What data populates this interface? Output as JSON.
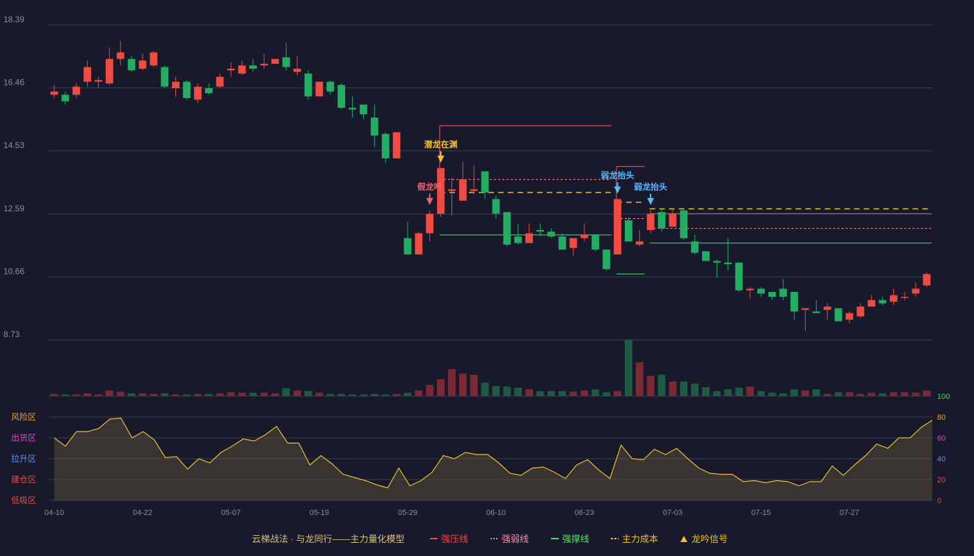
{
  "chart_data": {
    "type": "candlestick",
    "price_axis": {
      "ylim": [
        8.73,
        18.39
      ],
      "ticks": [
        "18.39",
        "16.46",
        "14.53",
        "12.59",
        "10.66",
        "8.73"
      ]
    },
    "x_tick_labels": [
      {
        "index": 0,
        "label": "04-10"
      },
      {
        "index": 8,
        "label": "04-22"
      },
      {
        "index": 16,
        "label": "05-07"
      },
      {
        "index": 24,
        "label": "05-19"
      },
      {
        "index": 32,
        "label": "05-29"
      },
      {
        "index": 40,
        "label": "06-10"
      },
      {
        "index": 48,
        "label": "06-23"
      },
      {
        "index": 56,
        "label": "07-03"
      },
      {
        "index": 64,
        "label": "07-15"
      },
      {
        "index": 72,
        "label": "07-27"
      }
    ],
    "candles": [
      [
        16.25,
        16.35,
        16.15,
        16.55
      ],
      [
        16.25,
        16.05,
        15.95,
        16.35
      ],
      [
        16.25,
        16.5,
        16.15,
        16.6
      ],
      [
        16.65,
        17.1,
        16.5,
        17.3
      ],
      [
        16.65,
        16.7,
        16.45,
        16.8
      ],
      [
        16.6,
        17.35,
        16.55,
        17.7
      ],
      [
        17.35,
        17.55,
        17.15,
        17.9
      ],
      [
        17.35,
        17.0,
        16.95,
        17.45
      ],
      [
        17.05,
        17.3,
        17.0,
        17.5
      ],
      [
        17.15,
        17.55,
        17.1,
        17.6
      ],
      [
        17.1,
        16.5,
        16.45,
        17.15
      ],
      [
        16.45,
        16.65,
        16.2,
        16.8
      ],
      [
        16.65,
        16.15,
        16.1,
        16.7
      ],
      [
        16.1,
        16.5,
        16.0,
        16.6
      ],
      [
        16.45,
        16.3,
        16.25,
        16.6
      ],
      [
        16.5,
        16.8,
        16.45,
        16.9
      ],
      [
        17.0,
        17.05,
        16.8,
        17.25
      ],
      [
        16.9,
        17.15,
        16.85,
        17.3
      ],
      [
        17.15,
        17.05,
        16.95,
        17.35
      ],
      [
        17.15,
        17.2,
        17.05,
        17.5
      ],
      [
        17.2,
        17.35,
        17.2,
        17.35
      ],
      [
        17.4,
        17.1,
        17.0,
        17.85
      ],
      [
        16.95,
        17.05,
        16.85,
        17.45
      ],
      [
        16.9,
        16.2,
        16.1,
        17.0
      ],
      [
        16.2,
        16.65,
        16.2,
        16.65
      ],
      [
        16.65,
        16.35,
        16.25,
        16.7
      ],
      [
        16.55,
        15.85,
        15.8,
        16.6
      ],
      [
        15.85,
        15.8,
        15.55,
        16.2
      ],
      [
        15.95,
        15.65,
        15.5,
        15.95
      ],
      [
        15.55,
        15.0,
        14.65,
        15.95
      ],
      [
        15.05,
        14.3,
        14.15,
        15.1
      ],
      [
        14.3,
        15.1,
        14.3,
        15.1
      ],
      [
        11.85,
        11.35,
        11.35,
        12.35
      ],
      [
        11.35,
        12.0,
        11.35,
        12.05
      ],
      [
        12.0,
        12.6,
        11.75,
        12.7
      ],
      [
        12.6,
        14.0,
        12.5,
        14.0
      ],
      [
        13.3,
        13.35,
        12.55,
        13.7
      ],
      [
        13.0,
        13.65,
        13.0,
        14.2
      ],
      [
        13.3,
        13.35,
        13.2,
        14.1
      ],
      [
        13.9,
        13.25,
        13.05,
        13.9
      ],
      [
        13.05,
        12.6,
        12.45,
        13.15
      ],
      [
        12.65,
        11.65,
        11.6,
        12.65
      ],
      [
        11.9,
        11.7,
        11.65,
        12.3
      ],
      [
        11.7,
        12.0,
        11.7,
        12.3
      ],
      [
        12.1,
        12.05,
        11.9,
        12.3
      ],
      [
        12.05,
        11.9,
        11.85,
        12.15
      ],
      [
        11.9,
        11.5,
        11.5,
        12.0
      ],
      [
        11.55,
        11.85,
        11.3,
        11.85
      ],
      [
        11.85,
        11.95,
        11.75,
        12.3
      ],
      [
        11.95,
        11.5,
        11.45,
        11.95
      ],
      [
        11.5,
        10.9,
        10.85,
        11.5
      ],
      [
        11.35,
        13.05,
        11.35,
        13.05
      ],
      [
        12.4,
        11.75,
        11.75,
        12.5
      ],
      [
        11.65,
        11.75,
        11.6,
        12.1
      ],
      [
        12.1,
        12.6,
        12.0,
        12.7
      ],
      [
        12.65,
        12.15,
        12.05,
        12.75
      ],
      [
        12.2,
        12.6,
        12.2,
        12.75
      ],
      [
        12.7,
        11.85,
        11.8,
        12.75
      ],
      [
        11.75,
        11.4,
        11.35,
        11.95
      ],
      [
        11.45,
        11.15,
        11.15,
        11.45
      ],
      [
        11.15,
        11.1,
        10.65,
        11.2
      ],
      [
        11.1,
        11.05,
        10.85,
        11.85
      ],
      [
        11.1,
        10.25,
        10.2,
        11.1
      ],
      [
        10.25,
        10.3,
        10.0,
        10.35
      ],
      [
        10.3,
        10.15,
        10.05,
        10.35
      ],
      [
        10.2,
        10.05,
        9.95,
        10.2
      ],
      [
        10.3,
        10.05,
        9.95,
        10.6
      ],
      [
        10.2,
        9.6,
        9.35,
        10.2
      ],
      [
        9.65,
        9.7,
        9.0,
        9.7
      ],
      [
        9.6,
        9.55,
        9.55,
        9.95
      ],
      [
        9.65,
        9.75,
        9.35,
        9.85
      ],
      [
        9.7,
        9.3,
        9.3,
        9.7
      ],
      [
        9.35,
        9.55,
        9.25,
        9.6
      ],
      [
        9.45,
        9.75,
        9.4,
        9.85
      ],
      [
        9.75,
        9.95,
        9.75,
        10.1
      ],
      [
        9.95,
        9.85,
        9.8,
        10.05
      ],
      [
        9.9,
        10.1,
        9.8,
        10.3
      ],
      [
        10.05,
        10.05,
        9.95,
        10.2
      ],
      [
        10.15,
        10.3,
        10.05,
        10.5
      ],
      [
        10.4,
        10.75,
        10.35,
        10.8
      ]
    ],
    "volume": [
      4,
      3,
      3,
      5,
      3,
      10,
      8,
      5,
      5,
      4,
      5,
      3,
      3,
      4,
      4,
      5,
      7,
      6,
      6,
      6,
      5,
      14,
      10,
      9,
      6,
      4,
      4,
      3,
      3,
      4,
      3,
      4,
      6,
      10,
      20,
      30,
      48,
      40,
      38,
      24,
      18,
      17,
      15,
      12,
      9,
      9,
      9,
      8,
      10,
      12,
      7,
      9,
      100,
      60,
      36,
      38,
      26,
      26,
      22,
      16,
      9,
      12,
      15,
      17,
      9,
      6,
      5,
      12,
      10,
      12,
      4,
      7,
      7,
      4,
      6,
      5,
      7,
      7,
      6,
      10
    ],
    "sentiment": {
      "ylim": [
        0,
        100
      ],
      "ticks": [
        "0",
        "20",
        "40",
        "60",
        "80",
        "100"
      ],
      "zones": [
        "风险区",
        "出货区",
        "拉升区",
        "建仓区",
        "低吸区"
      ],
      "values": [
        60,
        52,
        66,
        66,
        69,
        78,
        79,
        60,
        66,
        58,
        41,
        42,
        30,
        40,
        36,
        46,
        52,
        59,
        57,
        63,
        71,
        55,
        55,
        34,
        43,
        35,
        25,
        22,
        19,
        15,
        12,
        31,
        14,
        19,
        27,
        43,
        40,
        46,
        44,
        44,
        36,
        26,
        24,
        31,
        32,
        27,
        21,
        34,
        39,
        29,
        21,
        53,
        40,
        39,
        49,
        44,
        50,
        40,
        31,
        26,
        25,
        25,
        18,
        19,
        17,
        19,
        18,
        14,
        18,
        18,
        33,
        24,
        34,
        43,
        54,
        50,
        60,
        60,
        70,
        77
      ]
    },
    "annotations": [
      {
        "index": 35,
        "label": "潜龙在渊",
        "color": "#f0c03a"
      },
      {
        "index": 34,
        "label": "假龙吟",
        "color": "#f06070"
      },
      {
        "index": 51,
        "label": "弱龙抬头",
        "color": "#5cb8ff"
      },
      {
        "index": 54,
        "label": "弱龙抬头",
        "color": "#5cb8ff"
      }
    ],
    "level_lines": [
      {
        "type": "strong_pressure",
        "from": 35,
        "to": 50,
        "y": 15.3
      },
      {
        "type": "weak_dotted",
        "from": 35,
        "to": 50,
        "y": 13.65
      },
      {
        "type": "cost",
        "from": 35,
        "to": 50,
        "y": 13.25
      },
      {
        "type": "support",
        "from": 35,
        "to": 50,
        "y": 11.95
      },
      {
        "type": "strong_pressure",
        "from": 51,
        "to": 53,
        "y": 14.05
      },
      {
        "type": "weak_dotted",
        "from": 51,
        "to": 53,
        "y": 12.45
      },
      {
        "type": "cost",
        "from": 51,
        "to": 53,
        "y": 12.95
      },
      {
        "type": "support",
        "from": 51,
        "to": 53,
        "y": 10.75
      },
      {
        "type": "strong_pressure",
        "from": 54,
        "to": 79,
        "y": 12.6
      },
      {
        "type": "weak_dotted",
        "from": 54,
        "to": 79,
        "y": 12.15
      },
      {
        "type": "cost",
        "from": 54,
        "to": 79,
        "y": 12.75
      },
      {
        "type": "support",
        "from": 54,
        "to": 79,
        "y": 11.7
      }
    ],
    "legend": {
      "title": "云梯战法 · 与龙同行——主力量化模型",
      "items": [
        {
          "type": "strong_pressure",
          "label": "强压线",
          "color": "#f04848"
        },
        {
          "type": "weak_dotted",
          "label": "强弱线",
          "color": "#ff8fa0"
        },
        {
          "type": "support",
          "label": "强撑线",
          "color": "#58e070"
        },
        {
          "type": "cost",
          "label": "主力成本",
          "color": "#f0c030"
        },
        {
          "type": "signal",
          "label": "龙吟信号",
          "color": "#f0c030"
        }
      ]
    },
    "colors": {
      "up": "#ee4b43",
      "down": "#22ad62",
      "background": "#181a2c"
    }
  }
}
